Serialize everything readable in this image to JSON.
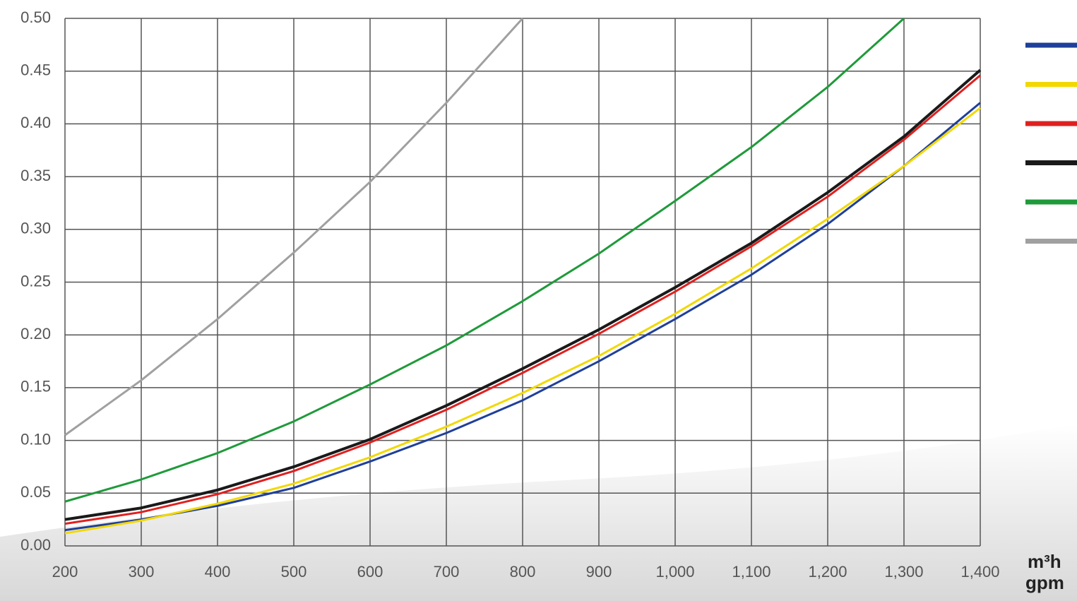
{
  "chart_data": {
    "type": "line",
    "x": [
      200,
      300,
      400,
      500,
      600,
      700,
      800,
      900,
      1000,
      1100,
      1200,
      1300,
      1400
    ],
    "xlim": [
      200,
      1400
    ],
    "xticks": [
      200,
      300,
      400,
      500,
      600,
      700,
      800,
      900,
      {
        "value": 1000,
        "label": "1,000"
      },
      {
        "value": 1100,
        "label": "1,100"
      },
      {
        "value": 1200,
        "label": "1,200"
      },
      {
        "value": 1300,
        "label": "1,300"
      },
      {
        "value": 1400,
        "label": "1,400"
      }
    ],
    "ylim": [
      0,
      0.5
    ],
    "yticks": [
      {
        "value": 0,
        "label": "0.00"
      },
      0.05,
      {
        "value": 0.1,
        "label": "0.10"
      },
      0.15,
      {
        "value": 0.2,
        "label": "0.20"
      },
      0.25,
      {
        "value": 0.3,
        "label": "0.30"
      },
      0.35,
      {
        "value": 0.4,
        "label": "0.40"
      },
      0.45,
      {
        "value": 0.5,
        "label": "0.50"
      }
    ],
    "x_label": [
      "m³h",
      "gpm"
    ],
    "grid": true,
    "legend": "right",
    "series": [
      {
        "color": "#1f3f9a",
        "values": [
          0.015,
          0.025,
          0.038,
          0.055,
          0.08,
          0.107,
          0.138,
          0.175,
          0.215,
          0.257,
          0.305,
          0.36,
          0.42
        ]
      },
      {
        "color": "#f2d800",
        "values": [
          0.012,
          0.024,
          0.04,
          0.059,
          0.084,
          0.113,
          0.145,
          0.18,
          0.22,
          0.263,
          0.31,
          0.36,
          0.415
        ]
      },
      {
        "color": "#e02020",
        "values": [
          0.021,
          0.032,
          0.049,
          0.071,
          0.098,
          0.129,
          0.164,
          0.201,
          0.241,
          0.284,
          0.331,
          0.385,
          0.446
        ]
      },
      {
        "color": "#1a1a1a",
        "values": [
          0.025,
          0.036,
          0.053,
          0.075,
          0.101,
          0.133,
          0.168,
          0.205,
          0.245,
          0.287,
          0.335,
          0.388,
          0.451
        ]
      },
      {
        "color": "#1f9a3a",
        "values": [
          0.042,
          0.063,
          0.088,
          0.118,
          0.153,
          0.19,
          0.232,
          0.277,
          0.327,
          0.378,
          0.435,
          0.5,
          null
        ]
      },
      {
        "color": "#a0a0a0",
        "values": [
          0.105,
          0.157,
          0.215,
          0.278,
          0.345,
          0.42,
          0.5,
          null,
          null,
          null,
          null,
          null,
          null
        ]
      }
    ]
  }
}
